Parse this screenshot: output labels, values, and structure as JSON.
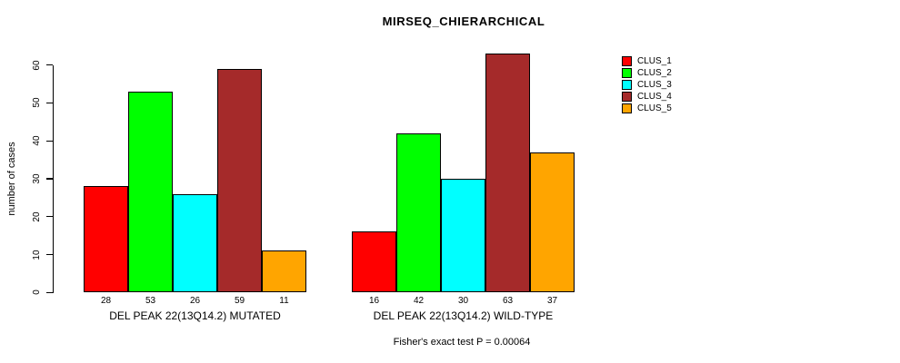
{
  "chart_data": {
    "type": "bar",
    "title": "MIRSEQ_CHIERARCHICAL",
    "ylabel": "number of cases",
    "xlabel": "",
    "ylim": [
      0,
      60
    ],
    "yticks": [
      0,
      10,
      20,
      30,
      40,
      50,
      60
    ],
    "grid": false,
    "legend_position": "right-outside",
    "legend_entries": [
      "CLUS_1",
      "CLUS_2",
      "CLUS_3",
      "CLUS_4",
      "CLUS_5"
    ],
    "colors": [
      "#ff0000",
      "#00ff00",
      "#00ffff",
      "#a52a2a",
      "#ffa500"
    ],
    "groups": [
      {
        "label": "DEL PEAK 22(13Q14.2) MUTATED",
        "values": [
          28,
          53,
          26,
          59,
          11
        ]
      },
      {
        "label": "DEL PEAK 22(13Q14.2) WILD-TYPE",
        "values": [
          16,
          42,
          30,
          63,
          37
        ]
      }
    ],
    "bar_value_labels_shown": true,
    "annotation": "Fisher's exact test P = 0.00064"
  }
}
